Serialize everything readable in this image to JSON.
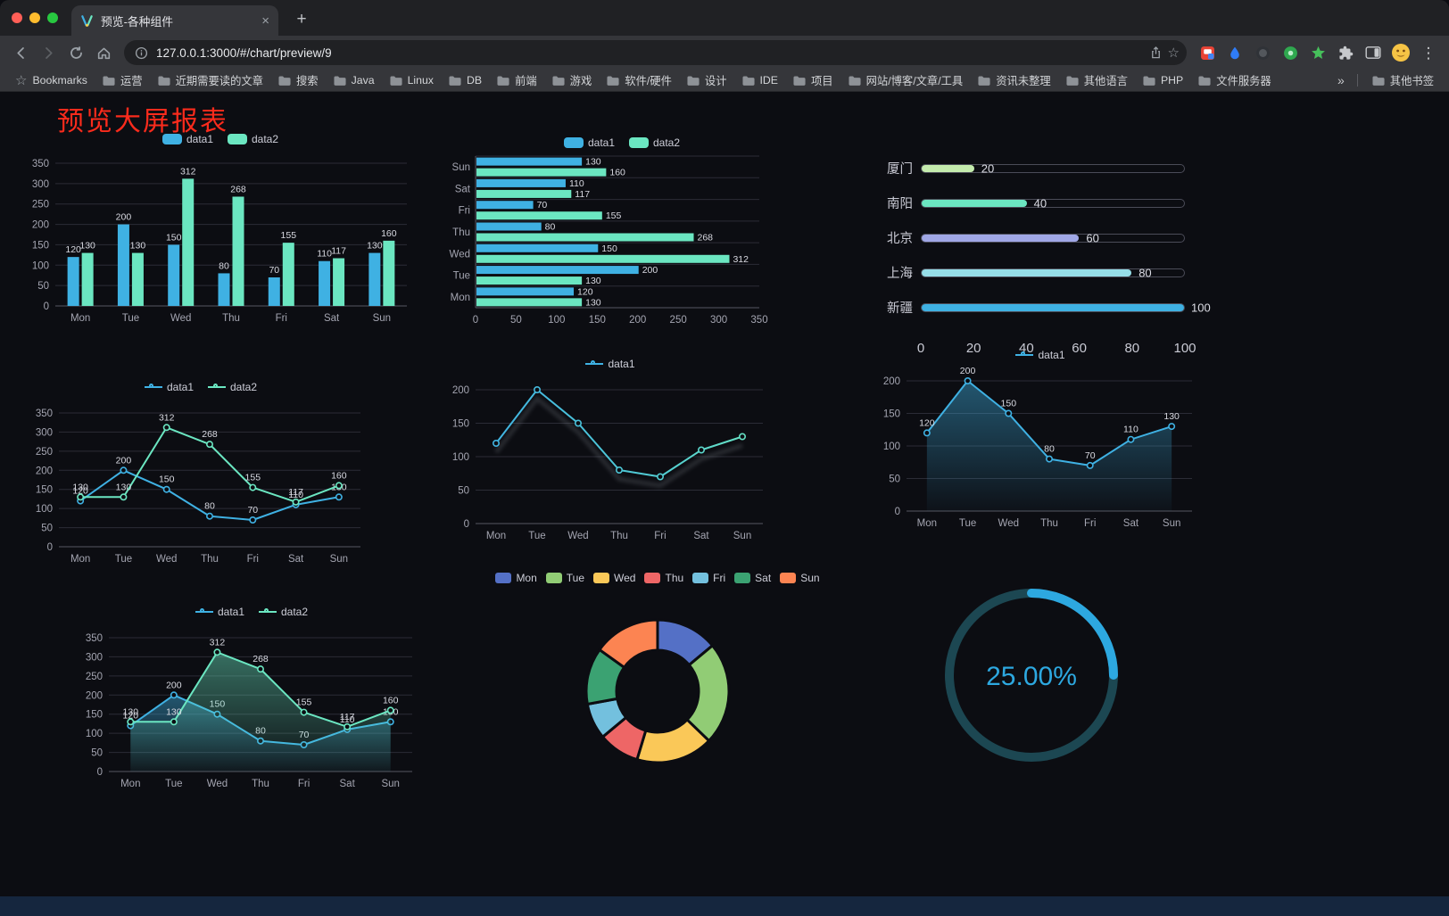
{
  "browser": {
    "tab": {
      "title": "预览-各种组件"
    },
    "toolbar": {
      "url": "127.0.0.1:3000/#/chart/preview/9"
    },
    "bookmarks": {
      "first_label": "Bookmarks",
      "folders": [
        "运营",
        "近期需要读的文章",
        "搜索",
        "Java",
        "Linux",
        "DB",
        "前端",
        "游戏",
        "软件/硬件",
        "设计",
        "IDE",
        "项目",
        "网站/博客/文章/工具",
        "资讯未整理",
        "其他语言",
        "PHP",
        "文件服务器"
      ],
      "overflow": "»",
      "other_label": "其他书签"
    }
  },
  "icons": {
    "close_tab": "×",
    "new_tab": "+",
    "menu": "⋮",
    "bookmark_star": "☆"
  },
  "page": {
    "title": "预览大屏报表"
  },
  "chart_data": [
    {
      "id": "bar-vertical",
      "type": "bar",
      "categories": [
        "Mon",
        "Tue",
        "Wed",
        "Thu",
        "Fri",
        "Sat",
        "Sun"
      ],
      "series": [
        {
          "name": "data1",
          "color": "#3fb1e3",
          "values": [
            120,
            200,
            150,
            80,
            70,
            110,
            130
          ]
        },
        {
          "name": "data2",
          "color": "#6be6c1",
          "values": [
            130,
            130,
            312,
            268,
            155,
            117,
            160
          ]
        }
      ],
      "ylim": [
        0,
        350
      ],
      "ystep": 50,
      "legend_position": "top",
      "value_labels": true,
      "grid": true
    },
    {
      "id": "bar-horizontal",
      "type": "hbar",
      "categories": [
        "Mon",
        "Tue",
        "Wed",
        "Thu",
        "Fri",
        "Sat",
        "Sun"
      ],
      "category_order": "Sun-at-top",
      "series": [
        {
          "name": "data1",
          "color": "#3fb1e3",
          "values": [
            120,
            200,
            150,
            80,
            70,
            110,
            130
          ]
        },
        {
          "name": "data2",
          "color": "#6be6c1",
          "values": [
            130,
            130,
            312,
            268,
            155,
            117,
            160
          ]
        }
      ],
      "xlim": [
        0,
        350
      ],
      "xstep": 50,
      "legend_position": "top",
      "value_labels": true,
      "grid": true
    },
    {
      "id": "progress-bars",
      "type": "progress",
      "categories": [
        "厦门",
        "南阳",
        "北京",
        "上海",
        "新疆"
      ],
      "values": [
        20,
        40,
        60,
        80,
        100
      ],
      "colors": [
        "#c4ebad",
        "#6be6c1",
        "#a0a7e6",
        "#96dee8",
        "#3fb1e3"
      ],
      "xlim": [
        0,
        100
      ],
      "xticks": [
        0,
        20,
        40,
        60,
        80,
        100
      ]
    },
    {
      "id": "line-dual",
      "type": "line",
      "categories": [
        "Mon",
        "Tue",
        "Wed",
        "Thu",
        "Fri",
        "Sat",
        "Sun"
      ],
      "series": [
        {
          "name": "data1",
          "color": "#3fb1e3",
          "values": [
            120,
            200,
            150,
            80,
            70,
            110,
            130
          ]
        },
        {
          "name": "data2",
          "color": "#6be6c1",
          "values": [
            130,
            130,
            312,
            268,
            155,
            117,
            160
          ]
        }
      ],
      "ylim": [
        0,
        350
      ],
      "ystep": 50,
      "legend_position": "top",
      "value_labels": true,
      "markers": true,
      "grid": true
    },
    {
      "id": "line-gradient",
      "type": "line",
      "categories": [
        "Mon",
        "Tue",
        "Wed",
        "Thu",
        "Fri",
        "Sat",
        "Sun"
      ],
      "series": [
        {
          "name": "data1",
          "gradient": [
            "#3fb1e3",
            "#6be6c1"
          ],
          "values": [
            120,
            200,
            150,
            80,
            70,
            110,
            130
          ]
        }
      ],
      "ylim": [
        0,
        200
      ],
      "ystep": 50,
      "legend_position": "top",
      "value_labels": false,
      "markers": true,
      "shadow": true,
      "grid": true
    },
    {
      "id": "area-single",
      "type": "line",
      "categories": [
        "Mon",
        "Tue",
        "Wed",
        "Thu",
        "Fri",
        "Sat",
        "Sun"
      ],
      "series": [
        {
          "name": "data1",
          "color": "#3fb1e3",
          "values": [
            120,
            200,
            150,
            80,
            70,
            110,
            130
          ],
          "area": true
        }
      ],
      "ylim": [
        0,
        200
      ],
      "ystep": 50,
      "legend_position": "top",
      "value_labels": true,
      "markers": true,
      "grid": true
    },
    {
      "id": "area-dual",
      "type": "line",
      "categories": [
        "Mon",
        "Tue",
        "Wed",
        "Thu",
        "Fri",
        "Sat",
        "Sun"
      ],
      "series": [
        {
          "name": "data1",
          "color": "#3fb1e3",
          "values": [
            120,
            200,
            150,
            80,
            70,
            110,
            130
          ],
          "area": true
        },
        {
          "name": "data2",
          "color": "#6be6c1",
          "values": [
            130,
            130,
            312,
            268,
            155,
            117,
            160
          ],
          "area": true
        }
      ],
      "ylim": [
        0,
        350
      ],
      "ystep": 50,
      "legend_position": "top",
      "value_labels": true,
      "markers": true,
      "grid": true
    },
    {
      "id": "donut",
      "type": "pie",
      "inner_radius_ratio": 0.575,
      "categories": [
        "Mon",
        "Tue",
        "Wed",
        "Thu",
        "Fri",
        "Sat",
        "Sun"
      ],
      "values": [
        120,
        200,
        150,
        80,
        70,
        110,
        130
      ],
      "colors": [
        "#5470c6",
        "#91cc75",
        "#fac858",
        "#ee6666",
        "#73c0de",
        "#3ba272",
        "#fc8452"
      ],
      "legend_position": "top"
    },
    {
      "id": "gauge",
      "type": "gauge",
      "value_percent": 25,
      "display_text": "25.00%",
      "progress_color": "#2da8e0",
      "track_color": "#1c4752"
    }
  ]
}
